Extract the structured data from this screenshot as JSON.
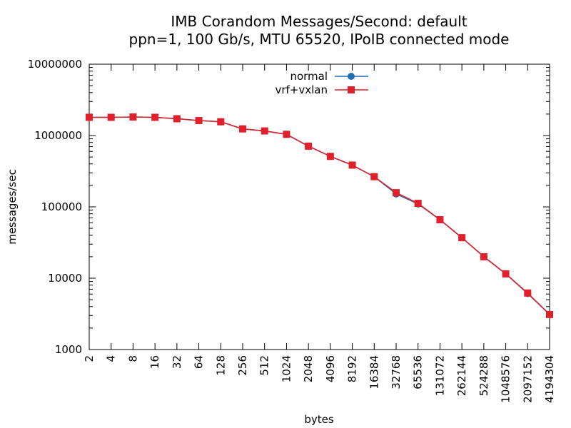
{
  "chart_data": {
    "type": "line",
    "title": "IMB Corandom Messages/Second: default",
    "subtitle": "ppn=1, 100 Gb/s, MTU 65520, IPoIB connected mode",
    "xlabel": "bytes",
    "ylabel": "messages/sec",
    "xscale": "log2",
    "yscale": "log10",
    "xlim": [
      2,
      4194304
    ],
    "ylim": [
      1000,
      10000000
    ],
    "grid": false,
    "legend_position": "top-center",
    "x_ticks": [
      "2",
      "4",
      "8",
      "16",
      "32",
      "64",
      "128",
      "256",
      "512",
      "1024",
      "2048",
      "4096",
      "8192",
      "16384",
      "32768",
      "65536",
      "131072",
      "262144",
      "524288",
      "1048576",
      "2097152",
      "4194304"
    ],
    "y_ticks": [
      "1000",
      "10000",
      "100000",
      "1000000",
      "10000000"
    ],
    "x": [
      2,
      4,
      8,
      16,
      32,
      64,
      128,
      256,
      512,
      1024,
      2048,
      4096,
      8192,
      16384,
      32768,
      65536,
      131072,
      262144,
      524288,
      1048576,
      2097152,
      4194304
    ],
    "series": [
      {
        "name": "normal",
        "color": "#1f6fb4",
        "marker": "circle",
        "values": [
          1800000,
          1800000,
          1820000,
          1800000,
          1720000,
          1620000,
          1560000,
          1240000,
          1160000,
          1040000,
          710000,
          510000,
          385000,
          265000,
          152000,
          110000,
          66000,
          37000,
          20000,
          11500,
          6100,
          3100
        ]
      },
      {
        "name": "vrf+vxlan",
        "color": "#e0202b",
        "marker": "square",
        "values": [
          1800000,
          1800000,
          1820000,
          1800000,
          1720000,
          1620000,
          1560000,
          1240000,
          1160000,
          1040000,
          710000,
          510000,
          385000,
          265000,
          158000,
          112000,
          66000,
          37000,
          20000,
          11500,
          6200,
          3100
        ]
      }
    ]
  }
}
